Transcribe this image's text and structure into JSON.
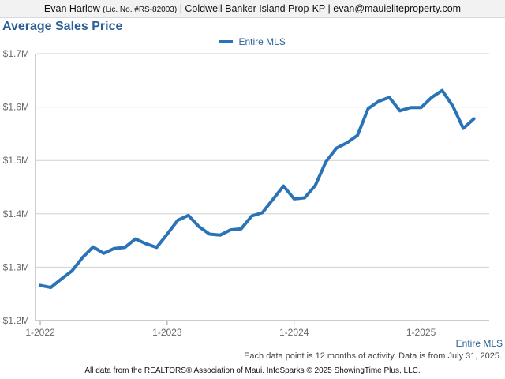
{
  "header": {
    "name": "Evan Harlow",
    "license": "(Lic. No. #RS-82003)",
    "company_contact": "| Coldwell Banker Island Prop-KP | evan@mauieliteproperty.com"
  },
  "footnote": "Each data point is 12 months of activity. Data is from July 31, 2025.",
  "source": "All data from the REALTORS® Association of Maui. InfoSparks © 2025 ShowingTime Plus, LLC.",
  "colors": {
    "series": "#2b73b7",
    "title": "#2a5f96",
    "grid": "#d0d0d0"
  },
  "chart_data": {
    "type": "line",
    "title": "Average Sales Price",
    "xlabel": "Entire MLS",
    "ylabel": "",
    "ylim": [
      1200000,
      1700000
    ],
    "yticks": [
      1200000,
      1300000,
      1400000,
      1500000,
      1600000,
      1700000
    ],
    "ytick_labels": [
      "$1.2M",
      "$1.3M",
      "$1.4M",
      "$1.5M",
      "$1.6M",
      "$1.7M"
    ],
    "xticks": [
      "2022-01",
      "2023-01",
      "2024-01",
      "2025-01"
    ],
    "xtick_labels": [
      "1-2022",
      "1-2023",
      "1-2024",
      "1-2025"
    ],
    "legend": "top-center",
    "grid": true,
    "series": [
      {
        "name": "Entire MLS",
        "x": [
          "2022-01",
          "2022-02",
          "2022-03",
          "2022-04",
          "2022-05",
          "2022-06",
          "2022-07",
          "2022-08",
          "2022-09",
          "2022-10",
          "2022-11",
          "2022-12",
          "2023-01",
          "2023-02",
          "2023-03",
          "2023-04",
          "2023-05",
          "2023-06",
          "2023-07",
          "2023-08",
          "2023-09",
          "2023-10",
          "2023-11",
          "2023-12",
          "2024-01",
          "2024-02",
          "2024-03",
          "2024-04",
          "2024-05",
          "2024-06",
          "2024-07",
          "2024-08",
          "2024-09",
          "2024-10",
          "2024-11",
          "2024-12",
          "2025-01",
          "2025-02",
          "2025-03",
          "2025-04",
          "2025-05",
          "2025-06",
          "2025-07"
        ],
        "values": [
          1266000,
          1262000,
          1278000,
          1293000,
          1318000,
          1338000,
          1326000,
          1335000,
          1337000,
          1353000,
          1344000,
          1337000,
          1362000,
          1388000,
          1397000,
          1376000,
          1362000,
          1360000,
          1370000,
          1372000,
          1396000,
          1402000,
          1427000,
          1452000,
          1428000,
          1430000,
          1453000,
          1497000,
          1523000,
          1533000,
          1547000,
          1597000,
          1611000,
          1618000,
          1593000,
          1599000,
          1599000,
          1618000,
          1631000,
          1602000,
          1560000,
          1578000,
          null
        ]
      }
    ]
  }
}
